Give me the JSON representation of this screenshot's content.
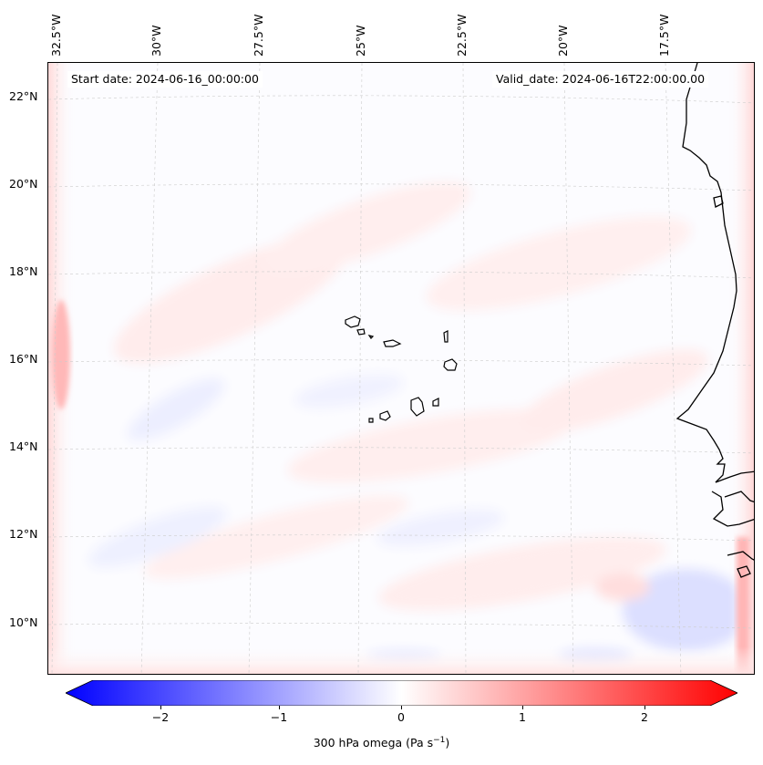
{
  "map": {
    "start_date": "Start date: 2024-06-16_00:00:00",
    "valid_date": "Valid_date: 2024-06-16T22:00:00.00",
    "lon_labels": [
      "32.5°W",
      "30°W",
      "27.5°W",
      "25°W",
      "22.5°W",
      "20°W",
      "17.5°W"
    ],
    "lat_labels": [
      "22°N",
      "20°N",
      "18°N",
      "16°N",
      "14°N",
      "12°N",
      "10°N"
    ],
    "colors": {
      "negative": "#0000ff",
      "neutral": "#ffffff",
      "positive": "#ff0000",
      "coast": "#000000"
    }
  },
  "colorbar": {
    "label": "300 hPa omega (Pa s",
    "label_sup": "−1",
    "label_end": ")",
    "ticks": [
      "−2",
      "−1",
      "0",
      "1",
      "2"
    ],
    "range": [
      -2.75,
      2.75
    ]
  }
}
